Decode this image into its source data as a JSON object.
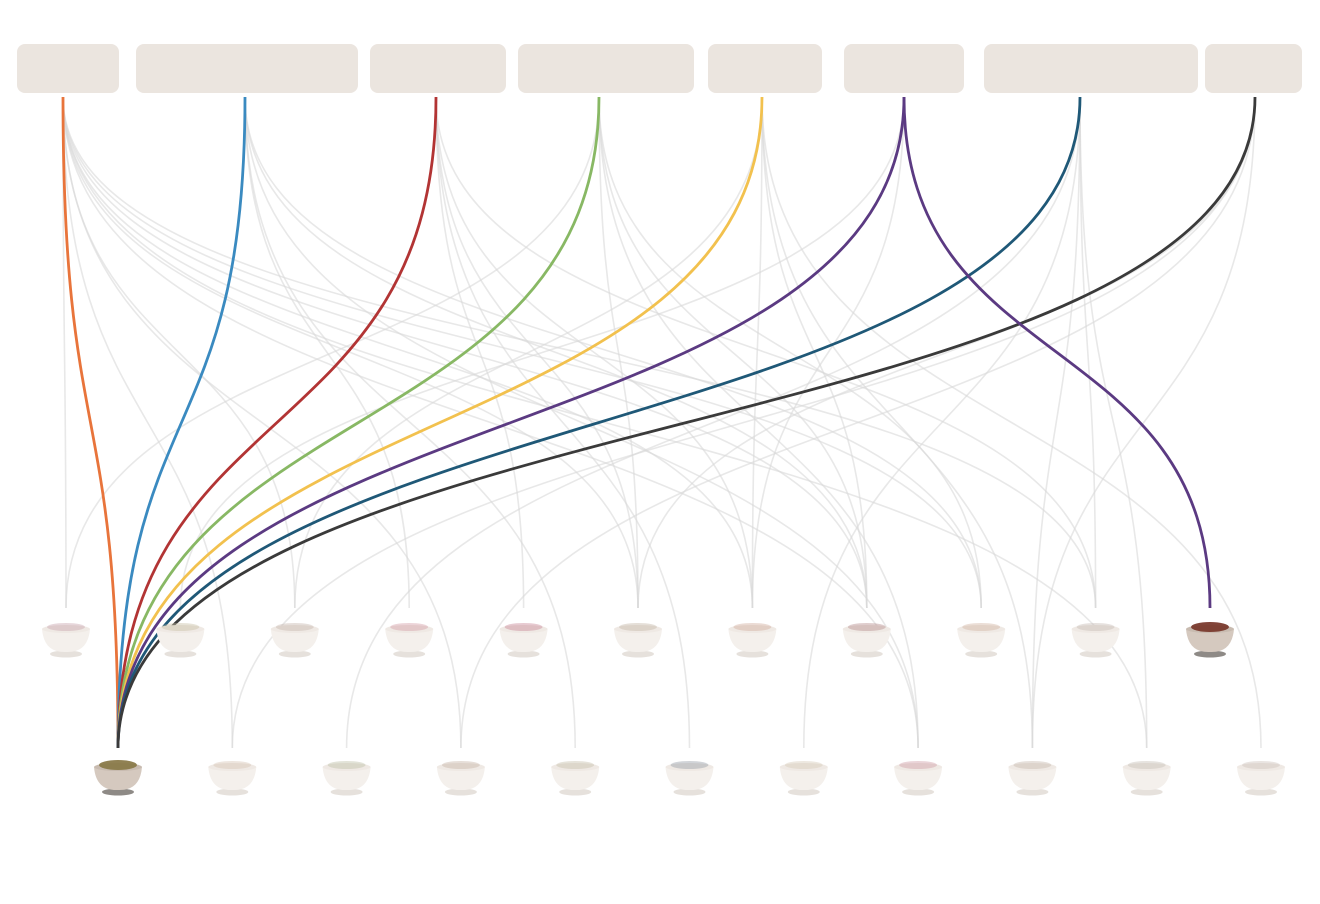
{
  "sources": [
    {
      "id": "s1",
      "color": "#e8743b"
    },
    {
      "id": "s2",
      "color": "#3a8ac0"
    },
    {
      "id": "s3",
      "color": "#b23434"
    },
    {
      "id": "s4",
      "color": "#88b864"
    },
    {
      "id": "s5",
      "color": "#f2c14e"
    },
    {
      "id": "s6",
      "color": "#5b3a82"
    },
    {
      "id": "s7",
      "color": "#1f5877"
    },
    {
      "id": "s8",
      "color": "#3a3a3a"
    }
  ],
  "bowl_rows": [
    {
      "row": "upper",
      "bowls": [
        {
          "id": "u1",
          "tint": "#c9a7b0",
          "active": false
        },
        {
          "id": "u2",
          "tint": "#c9c0a6",
          "active": false
        },
        {
          "id": "u3",
          "tint": "#c8b9b0",
          "active": false
        },
        {
          "id": "u4",
          "tint": "#d4a0a8",
          "active": false
        },
        {
          "id": "u5",
          "tint": "#c98a9a",
          "active": false
        },
        {
          "id": "u6",
          "tint": "#c6b7a9",
          "active": false
        },
        {
          "id": "u7",
          "tint": "#d3b0a0",
          "active": false
        },
        {
          "id": "u8",
          "tint": "#b89090",
          "active": false
        },
        {
          "id": "u9",
          "tint": "#d3b6a5",
          "active": false
        },
        {
          "id": "u10",
          "tint": "#c8bdb6",
          "active": false
        },
        {
          "id": "u11",
          "tint": "#7a3a2e",
          "active": true
        }
      ]
    },
    {
      "row": "lower",
      "bowls": [
        {
          "id": "l1",
          "tint": "#8a7a4a",
          "active": true
        },
        {
          "id": "l2",
          "tint": "#d8c6b6",
          "active": false
        },
        {
          "id": "l3",
          "tint": "#bfc0a8",
          "active": false
        },
        {
          "id": "l4",
          "tint": "#c8b6a8",
          "active": false
        },
        {
          "id": "l5",
          "tint": "#c8c0ae",
          "active": false
        },
        {
          "id": "l6",
          "tint": "#9aa0a8",
          "active": false
        },
        {
          "id": "l7",
          "tint": "#d8ccba",
          "active": false
        },
        {
          "id": "l8",
          "tint": "#d0a0a8",
          "active": false
        },
        {
          "id": "l9",
          "tint": "#c8bab0",
          "active": false
        },
        {
          "id": "l10",
          "tint": "#c8c0b8",
          "active": false
        },
        {
          "id": "l11",
          "tint": "#cfc4bc",
          "active": false
        }
      ]
    }
  ],
  "links": [
    {
      "from": "s1",
      "to": "l1",
      "highlight": true
    },
    {
      "from": "s2",
      "to": "l1",
      "highlight": true
    },
    {
      "from": "s3",
      "to": "l1",
      "highlight": true
    },
    {
      "from": "s4",
      "to": "l1",
      "highlight": true
    },
    {
      "from": "s5",
      "to": "l1",
      "highlight": true
    },
    {
      "from": "s6",
      "to": "l1",
      "highlight": true
    },
    {
      "from": "s7",
      "to": "l1",
      "highlight": true
    },
    {
      "from": "s8",
      "to": "l1",
      "highlight": true
    },
    {
      "from": "s6",
      "to": "u11",
      "highlight": true
    },
    {
      "from": "s1",
      "to": "u1",
      "highlight": false
    },
    {
      "from": "s1",
      "to": "u3",
      "highlight": false
    },
    {
      "from": "s1",
      "to": "u6",
      "highlight": false
    },
    {
      "from": "s1",
      "to": "u7",
      "highlight": false
    },
    {
      "from": "s1",
      "to": "u8",
      "highlight": false
    },
    {
      "from": "s1",
      "to": "u9",
      "highlight": false
    },
    {
      "from": "s1",
      "to": "u10",
      "highlight": false
    },
    {
      "from": "s1",
      "to": "l2",
      "highlight": false
    },
    {
      "from": "s1",
      "to": "l4",
      "highlight": false
    },
    {
      "from": "s1",
      "to": "l8",
      "highlight": false
    },
    {
      "from": "s1",
      "to": "l10",
      "highlight": false
    },
    {
      "from": "s2",
      "to": "u4",
      "highlight": false
    },
    {
      "from": "s2",
      "to": "u8",
      "highlight": false
    },
    {
      "from": "s2",
      "to": "u9",
      "highlight": false
    },
    {
      "from": "s2",
      "to": "l5",
      "highlight": false
    },
    {
      "from": "s2",
      "to": "l8",
      "highlight": false
    },
    {
      "from": "s3",
      "to": "u5",
      "highlight": false
    },
    {
      "from": "s3",
      "to": "u6",
      "highlight": false
    },
    {
      "from": "s3",
      "to": "u7",
      "highlight": false
    },
    {
      "from": "s3",
      "to": "u10",
      "highlight": false
    },
    {
      "from": "s3",
      "to": "l6",
      "highlight": false
    },
    {
      "from": "s4",
      "to": "u1",
      "highlight": false
    },
    {
      "from": "s4",
      "to": "u6",
      "highlight": false
    },
    {
      "from": "s4",
      "to": "u8",
      "highlight": false
    },
    {
      "from": "s4",
      "to": "u9",
      "highlight": false
    },
    {
      "from": "s4",
      "to": "l8",
      "highlight": false
    },
    {
      "from": "s5",
      "to": "u3",
      "highlight": false
    },
    {
      "from": "s5",
      "to": "u7",
      "highlight": false
    },
    {
      "from": "s5",
      "to": "u8",
      "highlight": false
    },
    {
      "from": "s5",
      "to": "l9",
      "highlight": false
    },
    {
      "from": "s5",
      "to": "l11",
      "highlight": false
    },
    {
      "from": "s6",
      "to": "u2",
      "highlight": false
    },
    {
      "from": "s6",
      "to": "u7",
      "highlight": false
    },
    {
      "from": "s7",
      "to": "u10",
      "highlight": false
    },
    {
      "from": "s7",
      "to": "l3",
      "highlight": false
    },
    {
      "from": "s7",
      "to": "l7",
      "highlight": false
    },
    {
      "from": "s7",
      "to": "l9",
      "highlight": false
    },
    {
      "from": "s7",
      "to": "l10",
      "highlight": false
    },
    {
      "from": "s8",
      "to": "u6",
      "highlight": false
    },
    {
      "from": "s8",
      "to": "l2",
      "highlight": false
    },
    {
      "from": "s8",
      "to": "l4",
      "highlight": false
    },
    {
      "from": "s8",
      "to": "l9",
      "highlight": false
    }
  ]
}
